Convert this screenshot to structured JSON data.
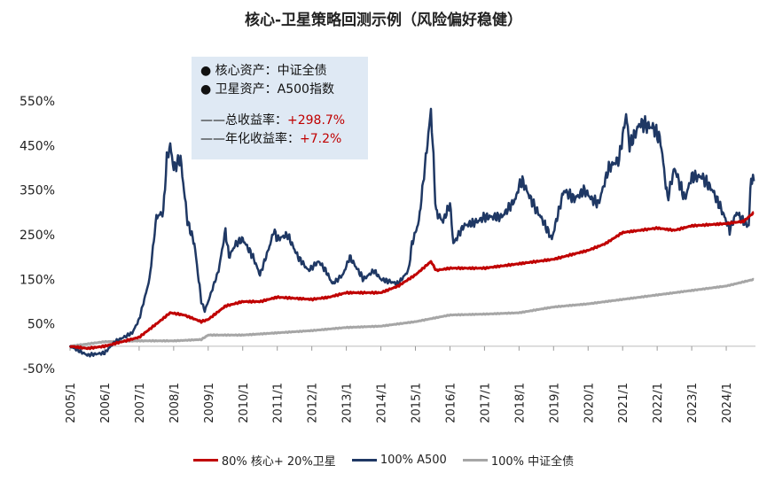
{
  "chart_data": {
    "type": "line",
    "title": "核心-卫星策略回测示例（风险偏好稳健）",
    "xlabel": "",
    "ylabel": "",
    "ylim": [
      -50,
      550
    ],
    "yticks": [
      "-50%",
      "50%",
      "150%",
      "250%",
      "350%",
      "450%",
      "550%"
    ],
    "ytick_values": [
      -50,
      50,
      150,
      250,
      350,
      450,
      550
    ],
    "xticks": [
      "2005/1",
      "2006/1",
      "2007/1",
      "2008/1",
      "2009/1",
      "2010/1",
      "2011/1",
      "2012/1",
      "2013/1",
      "2014/1",
      "2015/1",
      "2016/1",
      "2017/1",
      "2018/1",
      "2019/1",
      "2020/1",
      "2021/1",
      "2022/1",
      "2023/1",
      "2024/1"
    ],
    "xlim": [
      2005,
      2024.8
    ],
    "grid": false,
    "legend_position": "bottom",
    "series": [
      {
        "name": "80% 核心+ 20%卫星",
        "color": "#c00000",
        "points": [
          [
            2005,
            0
          ],
          [
            2005.5,
            -5
          ],
          [
            2006,
            0
          ],
          [
            2006.5,
            10
          ],
          [
            2007,
            20
          ],
          [
            2007.5,
            50
          ],
          [
            2007.9,
            75
          ],
          [
            2008.3,
            70
          ],
          [
            2008.8,
            55
          ],
          [
            2009,
            60
          ],
          [
            2009.5,
            90
          ],
          [
            2010,
            100
          ],
          [
            2010.5,
            100
          ],
          [
            2011,
            110
          ],
          [
            2012,
            105
          ],
          [
            2012.5,
            110
          ],
          [
            2013,
            120
          ],
          [
            2014,
            120
          ],
          [
            2014.5,
            135
          ],
          [
            2015,
            160
          ],
          [
            2015.45,
            190
          ],
          [
            2015.6,
            170
          ],
          [
            2016,
            175
          ],
          [
            2017,
            175
          ],
          [
            2018,
            185
          ],
          [
            2019,
            195
          ],
          [
            2020,
            215
          ],
          [
            2020.5,
            230
          ],
          [
            2021,
            255
          ],
          [
            2022,
            265
          ],
          [
            2022.5,
            260
          ],
          [
            2023,
            270
          ],
          [
            2024,
            275
          ],
          [
            2024.5,
            280
          ],
          [
            2024.8,
            300
          ]
        ]
      },
      {
        "name": "100% A500",
        "color": "#1f3864",
        "points": [
          [
            2005,
            0
          ],
          [
            2005.5,
            -20
          ],
          [
            2006,
            -15
          ],
          [
            2006.3,
            10
          ],
          [
            2006.8,
            30
          ],
          [
            2007,
            60
          ],
          [
            2007.3,
            150
          ],
          [
            2007.5,
            290
          ],
          [
            2007.7,
            300
          ],
          [
            2007.8,
            420
          ],
          [
            2007.9,
            450
          ],
          [
            2008,
            400
          ],
          [
            2008.2,
            420
          ],
          [
            2008.4,
            280
          ],
          [
            2008.6,
            230
          ],
          [
            2008.8,
            100
          ],
          [
            2008.9,
            80
          ],
          [
            2009,
            100
          ],
          [
            2009.3,
            170
          ],
          [
            2009.5,
            260
          ],
          [
            2009.6,
            200
          ],
          [
            2009.8,
            230
          ],
          [
            2010,
            240
          ],
          [
            2010.3,
            200
          ],
          [
            2010.5,
            160
          ],
          [
            2010.8,
            230
          ],
          [
            2010.9,
            260
          ],
          [
            2011,
            240
          ],
          [
            2011.3,
            250
          ],
          [
            2011.6,
            200
          ],
          [
            2011.9,
            170
          ],
          [
            2012.2,
            190
          ],
          [
            2012.4,
            170
          ],
          [
            2012.6,
            140
          ],
          [
            2012.9,
            160
          ],
          [
            2013.1,
            200
          ],
          [
            2013.5,
            150
          ],
          [
            2013.8,
            170
          ],
          [
            2014,
            150
          ],
          [
            2014.5,
            140
          ],
          [
            2014.8,
            170
          ],
          [
            2014.9,
            230
          ],
          [
            2015.1,
            280
          ],
          [
            2015.3,
            420
          ],
          [
            2015.45,
            530
          ],
          [
            2015.6,
            300
          ],
          [
            2015.8,
            280
          ],
          [
            2016,
            320
          ],
          [
            2016.1,
            230
          ],
          [
            2016.4,
            270
          ],
          [
            2016.8,
            280
          ],
          [
            2017,
            290
          ],
          [
            2017.5,
            290
          ],
          [
            2017.9,
            330
          ],
          [
            2018,
            360
          ],
          [
            2018.1,
            370
          ],
          [
            2018.4,
            320
          ],
          [
            2018.7,
            280
          ],
          [
            2018.95,
            240
          ],
          [
            2019.2,
            320
          ],
          [
            2019.3,
            350
          ],
          [
            2019.6,
            330
          ],
          [
            2019.9,
            350
          ],
          [
            2020.1,
            330
          ],
          [
            2020.3,
            320
          ],
          [
            2020.6,
            400
          ],
          [
            2020.9,
            420
          ],
          [
            2021.1,
            520
          ],
          [
            2021.2,
            450
          ],
          [
            2021.5,
            500
          ],
          [
            2021.9,
            490
          ],
          [
            2022.1,
            460
          ],
          [
            2022.3,
            330
          ],
          [
            2022.5,
            400
          ],
          [
            2022.8,
            330
          ],
          [
            2023,
            380
          ],
          [
            2023.3,
            380
          ],
          [
            2023.6,
            350
          ],
          [
            2023.9,
            300
          ],
          [
            2024.1,
            260
          ],
          [
            2024.3,
            300
          ],
          [
            2024.5,
            280
          ],
          [
            2024.65,
            270
          ],
          [
            2024.72,
            380
          ],
          [
            2024.8,
            370
          ]
        ]
      },
      {
        "name": "100% 中证全债",
        "color": "#a6a6a6",
        "points": [
          [
            2005,
            0
          ],
          [
            2006,
            10
          ],
          [
            2007,
            12
          ],
          [
            2008,
            12
          ],
          [
            2008.8,
            15
          ],
          [
            2009,
            25
          ],
          [
            2010,
            25
          ],
          [
            2011,
            30
          ],
          [
            2012,
            35
          ],
          [
            2013,
            42
          ],
          [
            2014,
            45
          ],
          [
            2015,
            55
          ],
          [
            2016,
            70
          ],
          [
            2017,
            72
          ],
          [
            2018,
            75
          ],
          [
            2019,
            88
          ],
          [
            2020,
            95
          ],
          [
            2021,
            105
          ],
          [
            2022,
            115
          ],
          [
            2023,
            125
          ],
          [
            2024,
            135
          ],
          [
            2024.8,
            150
          ]
        ]
      }
    ]
  },
  "info_box": {
    "line1": "● 核心资产：中证全债",
    "line2": "● 卫星资产：A500指数",
    "total_label": "——总收益率：",
    "total_value": "+298.7%",
    "annual_label": "——年化收益率：",
    "annual_value": "+7.2%"
  }
}
